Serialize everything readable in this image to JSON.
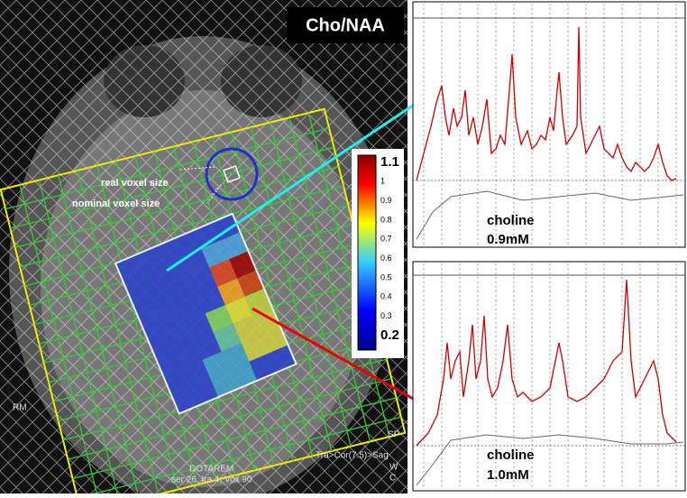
{
  "image": {
    "title": "Cho/NAA",
    "labels": {
      "real_voxel": "real voxel size",
      "nominal_voxel": "nominal voxel size"
    },
    "colorbar": [
      "1.1",
      "1",
      "0.9",
      "0.8",
      "0.7",
      "0.6",
      "0.5",
      "0.4",
      "0.3",
      "0.2"
    ],
    "scanner": {
      "left": "RM",
      "right": "SP",
      "contrast": "DOTAREM",
      "series": "ser 26, Ira 4, Vox 90",
      "orientation": "Tra>Cor(7.5)>Sag",
      "w": "W",
      "c": "C"
    }
  },
  "spectra": [
    {
      "metabolite": "choline",
      "concentration": "0.9mM"
    },
    {
      "metabolite": "choline",
      "concentration": "1.0mM"
    }
  ]
}
